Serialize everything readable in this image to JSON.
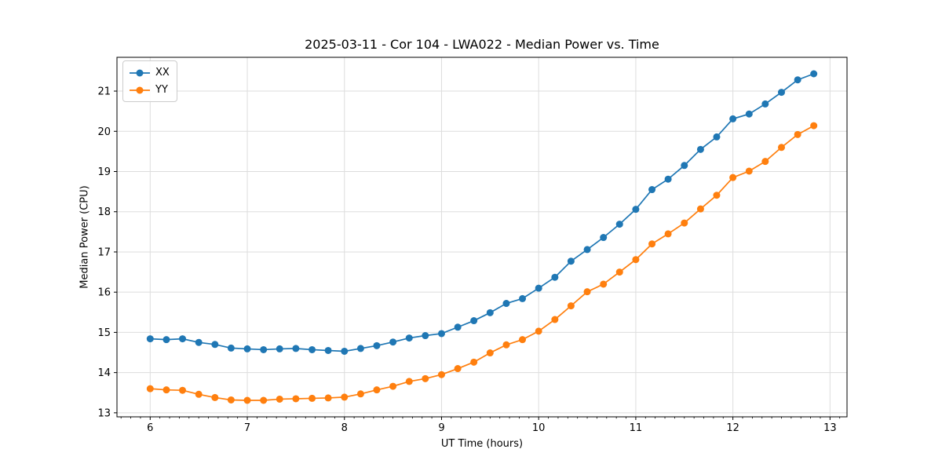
{
  "chart_data": {
    "type": "line",
    "title": "2025-03-11 - Cor 104 - LWA022 - Median Power vs. Time",
    "xlabel": "UT Time (hours)",
    "ylabel": "Median Power (CPU)",
    "xlim": [
      5.658,
      13.175
    ],
    "ylim": [
      12.9,
      21.84
    ],
    "xticks": [
      6,
      7,
      8,
      9,
      10,
      11,
      12,
      13
    ],
    "yticks": [
      13,
      14,
      15,
      16,
      17,
      18,
      19,
      20,
      21
    ],
    "minor_xtick_step": 0.1,
    "grid": true,
    "grid_color": "#dddddd",
    "spine_color": "#000000",
    "legend_position": "upper-left",
    "marker": "circle",
    "x": [
      6.0,
      6.167,
      6.333,
      6.5,
      6.667,
      6.833,
      7.0,
      7.167,
      7.333,
      7.5,
      7.667,
      7.833,
      8.0,
      8.167,
      8.333,
      8.5,
      8.667,
      8.833,
      9.0,
      9.167,
      9.333,
      9.5,
      9.667,
      9.833,
      10.0,
      10.167,
      10.333,
      10.5,
      10.667,
      10.833,
      11.0,
      11.167,
      11.333,
      11.5,
      11.667,
      11.833,
      12.0,
      12.167,
      12.333,
      12.5,
      12.667,
      12.833
    ],
    "series": [
      {
        "name": "XX",
        "color": "#1f77b4",
        "values": [
          14.84,
          14.82,
          14.84,
          14.75,
          14.7,
          14.61,
          14.59,
          14.57,
          14.59,
          14.6,
          14.57,
          14.55,
          14.53,
          14.6,
          14.67,
          14.76,
          14.86,
          14.92,
          14.97,
          15.13,
          15.29,
          15.49,
          15.72,
          15.84,
          16.1,
          16.37,
          16.77,
          17.06,
          17.36,
          17.69,
          18.06,
          18.55,
          18.81,
          19.15,
          19.55,
          19.86,
          20.31,
          20.43,
          20.68,
          20.97,
          21.28,
          21.43
        ]
      },
      {
        "name": "YY",
        "color": "#ff7f0e",
        "values": [
          13.6,
          13.57,
          13.56,
          13.46,
          13.38,
          13.32,
          13.31,
          13.31,
          13.34,
          13.35,
          13.36,
          13.37,
          13.39,
          13.47,
          13.57,
          13.66,
          13.78,
          13.85,
          13.95,
          14.1,
          14.26,
          14.49,
          14.69,
          14.82,
          15.03,
          15.32,
          15.66,
          16.01,
          16.2,
          16.5,
          16.81,
          17.2,
          17.45,
          17.72,
          18.07,
          18.41,
          18.85,
          19.01,
          19.25,
          19.6,
          19.92,
          20.14
        ]
      }
    ]
  }
}
